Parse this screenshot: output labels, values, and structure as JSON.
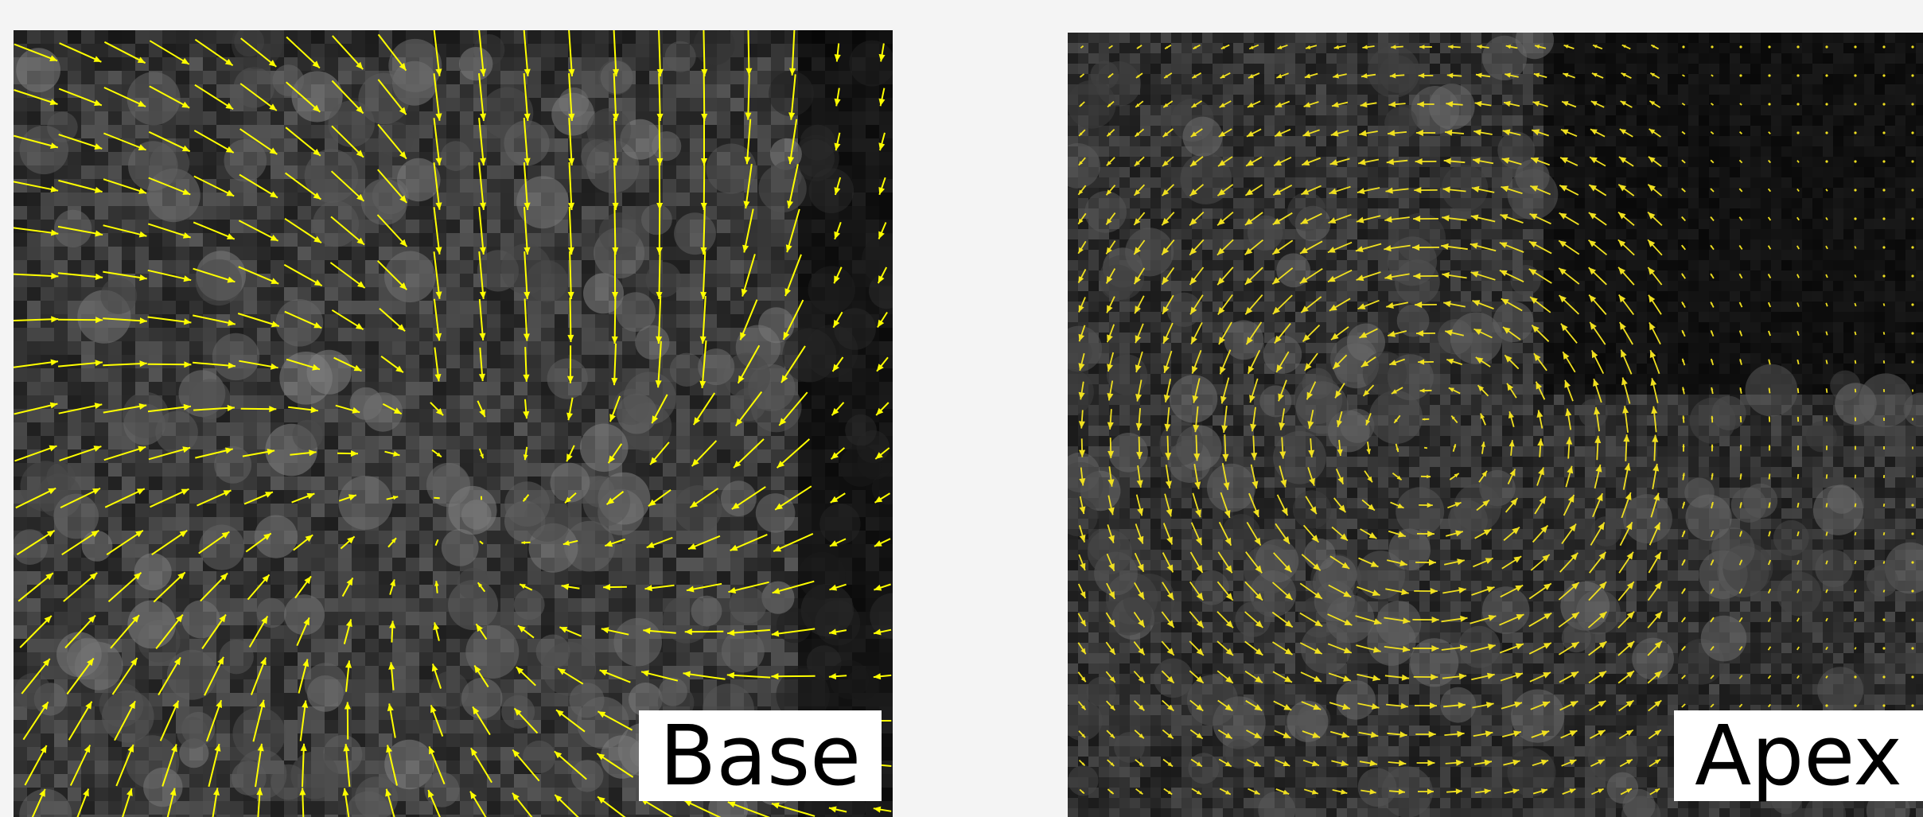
{
  "panels": [
    {
      "id": "base",
      "label": "Base",
      "field": "converging-swirl",
      "arrow_color": "#ffff00",
      "background": "grayscale-cell-texture"
    },
    {
      "id": "apex",
      "label": "Apex",
      "field": "clockwise-vortex",
      "arrow_color": "#f0e020",
      "background": "grayscale-cell-texture"
    }
  ]
}
